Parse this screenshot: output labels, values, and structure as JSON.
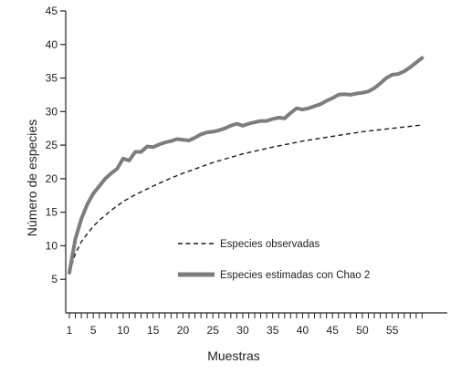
{
  "chart_data": {
    "type": "line",
    "xlabel": "Muestras",
    "ylabel": "Número de especies",
    "xlim": [
      1,
      60
    ],
    "ylim": [
      0,
      45
    ],
    "x_ticks": [
      1,
      5,
      10,
      15,
      20,
      25,
      30,
      35,
      40,
      45,
      50,
      55
    ],
    "y_ticks": [
      5,
      10,
      15,
      20,
      25,
      30,
      35,
      40,
      45
    ],
    "grid": false,
    "legend_position": "bottom-right",
    "series": [
      {
        "name": "Especies observadas",
        "style": "dashed",
        "color": "#1a1a1a",
        "x": [
          1,
          2,
          3,
          4,
          5,
          6,
          8,
          10,
          12,
          15,
          18,
          20,
          25,
          30,
          35,
          40,
          45,
          50,
          55,
          60
        ],
        "values": [
          6.0,
          8.8,
          10.6,
          11.8,
          12.9,
          13.8,
          15.3,
          16.6,
          17.6,
          18.9,
          20.1,
          20.8,
          22.4,
          23.7,
          24.7,
          25.6,
          26.3,
          27.0,
          27.5,
          28.0
        ]
      },
      {
        "name": "Especies estimadas con Chao 2",
        "style": "solid",
        "color": "#7d7d7d",
        "x": [
          1,
          2,
          3,
          4,
          5,
          6,
          7,
          8,
          9,
          10,
          11,
          12,
          13,
          14,
          15,
          16,
          17,
          18,
          19,
          20,
          21,
          22,
          23,
          24,
          25,
          26,
          27,
          28,
          29,
          30,
          31,
          32,
          33,
          34,
          35,
          36,
          37,
          38,
          39,
          40,
          41,
          42,
          43,
          44,
          45,
          46,
          47,
          48,
          49,
          50,
          51,
          52,
          53,
          54,
          55,
          56,
          57,
          58,
          59,
          60
        ],
        "values": [
          6.0,
          11.0,
          14.0,
          16.2,
          17.8,
          18.9,
          20.0,
          20.8,
          21.5,
          23.0,
          22.7,
          24.0,
          24.0,
          24.8,
          24.7,
          25.1,
          25.4,
          25.6,
          25.9,
          25.8,
          25.7,
          26.1,
          26.6,
          26.9,
          27.0,
          27.2,
          27.5,
          27.9,
          28.2,
          27.9,
          28.2,
          28.4,
          28.6,
          28.6,
          28.9,
          29.1,
          29.0,
          29.8,
          30.5,
          30.3,
          30.5,
          30.8,
          31.1,
          31.6,
          32.0,
          32.5,
          32.6,
          32.5,
          32.7,
          32.8,
          33.0,
          33.5,
          34.2,
          35.0,
          35.5,
          35.6,
          36.0,
          36.6,
          37.3,
          38.0
        ]
      }
    ]
  }
}
